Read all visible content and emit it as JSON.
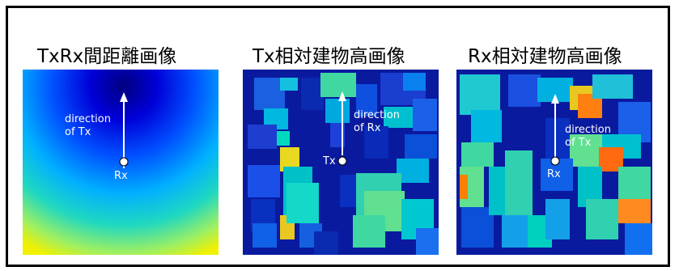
{
  "panels": [
    {
      "title": "TxRx間距離画像",
      "arrow_label_1": "direction",
      "arrow_label_2": "of Tx",
      "marker_label": "Rx"
    },
    {
      "title": "Tx相対建物高画像",
      "arrow_label_1": "direction",
      "arrow_label_2": "of Rx",
      "marker_label": "Tx"
    },
    {
      "title": "Rx相対建物高画像",
      "arrow_label_1": "direction",
      "arrow_label_2": "of Tx",
      "marker_label": "Rx"
    }
  ],
  "colors": {
    "frame": "#000000",
    "background_low": "#00007f",
    "mid": "#00c0c0",
    "high": "#ffff00",
    "accent_orange": "#ff7f00",
    "annotation": "#ffffff"
  }
}
